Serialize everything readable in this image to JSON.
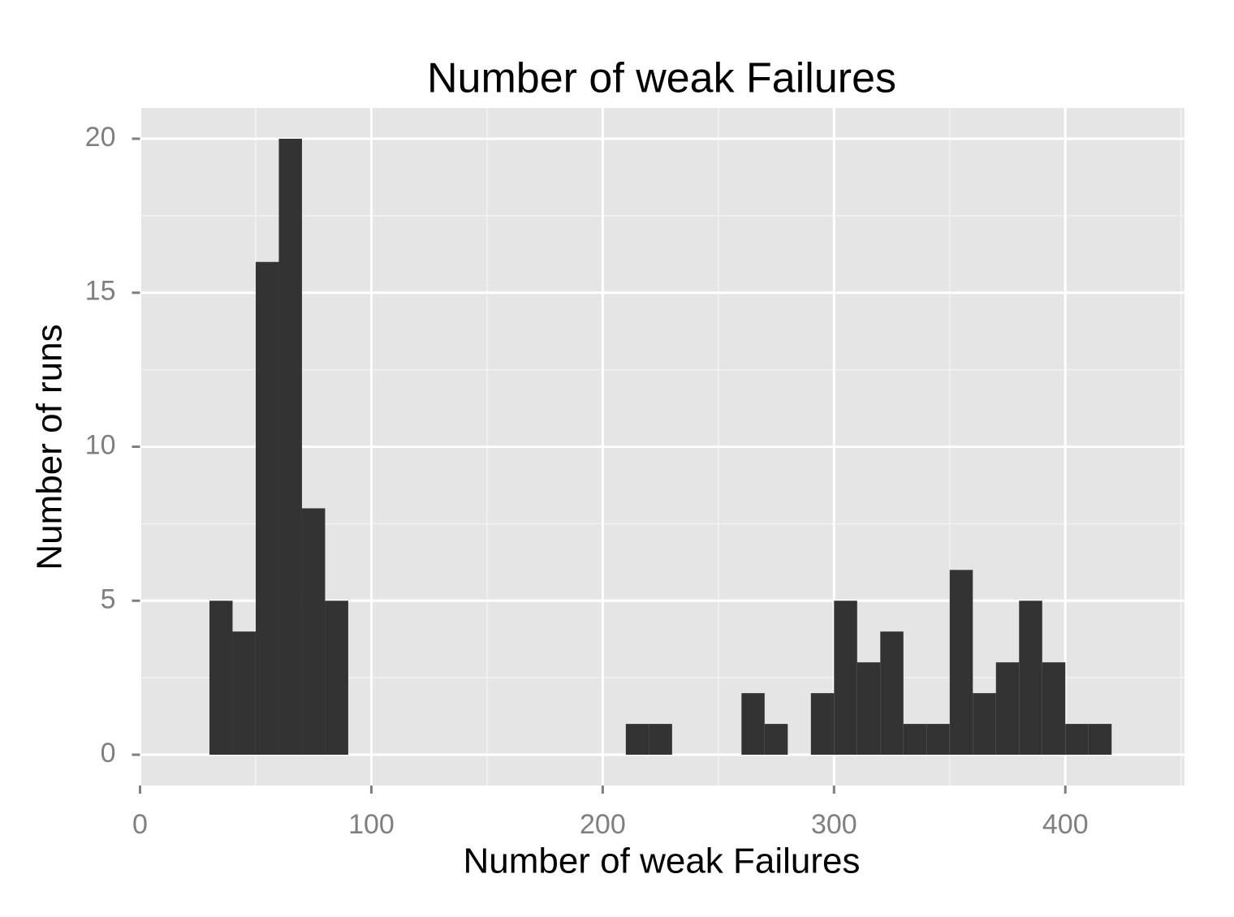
{
  "chart_data": {
    "type": "histogram",
    "title": "Number of weak Failures",
    "x_label": "Number of weak Failures",
    "y_label": "Number of runs",
    "bins": [
      30,
      40,
      50,
      60,
      70,
      80,
      90,
      100,
      110,
      120,
      130,
      140,
      150,
      160,
      170,
      180,
      190,
      200,
      210,
      220,
      230,
      240,
      250,
      260,
      270,
      280,
      290,
      300,
      310,
      320,
      330,
      340,
      350,
      360,
      370,
      380,
      390,
      400,
      410,
      420
    ],
    "values": [
      5,
      4,
      16,
      20,
      8,
      5,
      0,
      0,
      0,
      0,
      0,
      0,
      0,
      0,
      0,
      0,
      0,
      0,
      1,
      1,
      0,
      0,
      0,
      2,
      1,
      0,
      2,
      5,
      3,
      4,
      1,
      1,
      6,
      2,
      3,
      5,
      3,
      1,
      1
    ],
    "color": "#333333",
    "xlim": [
      0,
      451.5
    ],
    "xticks": [
      0,
      100,
      200,
      300,
      400
    ],
    "minor_xticks": [
      50,
      150,
      250,
      350,
      450
    ],
    "ylim": [
      -1,
      21
    ],
    "yticks": [
      0,
      5,
      10,
      15,
      20
    ],
    "minor_yticks": [
      2.5,
      7.5,
      12.5,
      17.5
    ],
    "grid": true
  }
}
